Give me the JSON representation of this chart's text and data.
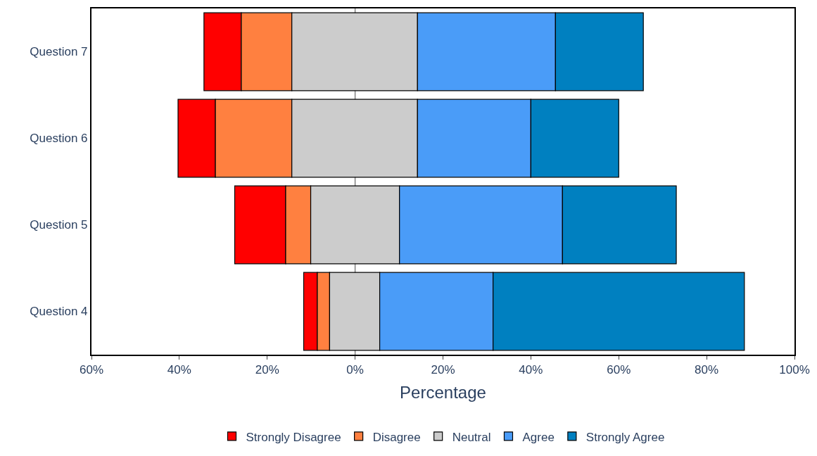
{
  "chart_data": {
    "type": "bar",
    "orientation": "horizontal",
    "xlabel": "Percentage",
    "categories": [
      "Question 7",
      "Question 6",
      "Question 5",
      "Question 4"
    ],
    "series": [
      {
        "name": "Strongly Disagree",
        "color": "#ff0000",
        "base": [
          -34.4,
          -40.3,
          -27.4,
          -11.7
        ],
        "values": [
          8.5,
          8.5,
          11.6,
          3.1
        ]
      },
      {
        "name": "Disagree",
        "color": "#ff8040",
        "base": [
          -25.9,
          -31.8,
          -15.8,
          -8.6
        ],
        "values": [
          11.5,
          17.4,
          5.7,
          2.8
        ]
      },
      {
        "name": "Neutral",
        "color": "#cccccc",
        "base": [
          -14.4,
          -14.4,
          -10.1,
          -5.8
        ],
        "values": [
          28.6,
          28.6,
          20.2,
          11.4
        ]
      },
      {
        "name": "Agree",
        "color": "#4a9cf8",
        "base": [
          14.2,
          14.2,
          10.1,
          5.6
        ],
        "values": [
          31.4,
          25.8,
          37.1,
          25.8
        ]
      },
      {
        "name": "Strongly Agree",
        "color": "#0080c0",
        "base": [
          45.6,
          40.0,
          47.2,
          31.4
        ],
        "values": [
          20.0,
          20.0,
          25.9,
          57.2
        ]
      }
    ],
    "xlim": [
      -60,
      100
    ],
    "xticks": [
      {
        "value": -60,
        "label": "60%"
      },
      {
        "value": -40,
        "label": "40%"
      },
      {
        "value": -20,
        "label": "20%"
      },
      {
        "value": 0,
        "label": "0%"
      },
      {
        "value": 20,
        "label": "20%"
      },
      {
        "value": 40,
        "label": "40%"
      },
      {
        "value": 60,
        "label": "60%"
      },
      {
        "value": 80,
        "label": "80%"
      },
      {
        "value": 100,
        "label": "100%"
      }
    ],
    "ref_lines": [
      {
        "axis": "x",
        "value": 0,
        "color": "#808080"
      }
    ],
    "legend": "bottom",
    "grid": false
  }
}
